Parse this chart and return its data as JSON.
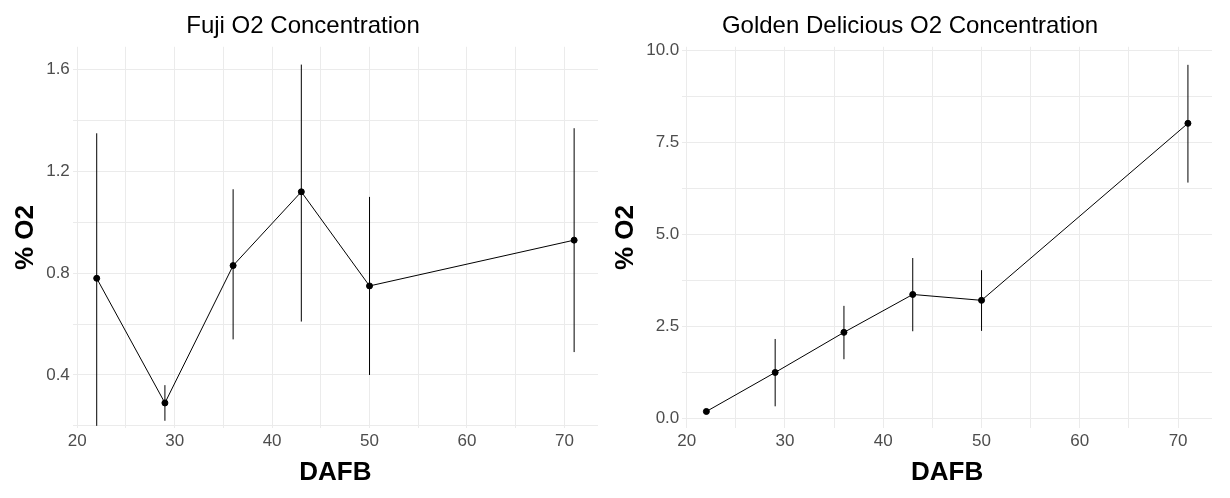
{
  "chart_data": [
    {
      "type": "line",
      "title": "Fuji O2 Concentration",
      "xlabel": "DAFB",
      "ylabel": "% O2",
      "x": [
        22,
        29,
        36,
        43,
        50,
        71
      ],
      "series": [
        {
          "color": "#000000",
          "values": [
            0.78,
            0.29,
            0.83,
            1.12,
            0.75,
            0.93
          ],
          "errors": [
            [
              0.2,
              1.35
            ],
            [
              0.22,
              0.36
            ],
            [
              0.54,
              1.13
            ],
            [
              0.61,
              1.62
            ],
            [
              0.4,
              1.1
            ],
            [
              0.49,
              1.37
            ]
          ]
        }
      ],
      "xlim": [
        19.55,
        73.45
      ],
      "xticks": [
        20,
        {
          "value": 25,
          "label": null
        },
        30,
        {
          "value": 35,
          "label": null
        },
        40,
        {
          "value": 45,
          "label": null
        },
        50,
        {
          "value": 55,
          "label": null
        },
        60,
        {
          "value": 65,
          "label": null
        },
        70
      ],
      "ylim": [
        0.19,
        1.69
      ],
      "yticks": [
        {
          "value": 0.2,
          "label": null
        },
        0.4,
        {
          "value": 0.6,
          "label": null
        },
        0.8,
        {
          "value": 1.0,
          "label": null
        },
        1.2,
        {
          "value": 1.4,
          "label": null
        },
        1.6
      ],
      "grid": true,
      "legend": false,
      "marker": "circle",
      "line_style": "solid"
    },
    {
      "type": "line",
      "title": "Golden Delicious O2 Concentration",
      "xlabel": "DAFB",
      "ylabel": "% O2",
      "x": [
        22,
        29,
        36,
        43,
        50,
        71
      ],
      "series": [
        {
          "color": "#000000",
          "values": [
            0.19,
            1.25,
            2.34,
            3.37,
            3.21,
            8.02
          ],
          "errors": [
            null,
            [
              0.33,
              2.16
            ],
            [
              1.61,
              3.06
            ],
            [
              2.37,
              4.36
            ],
            [
              2.38,
              4.03
            ],
            [
              6.41,
              9.61
            ]
          ]
        }
      ],
      "xlim": [
        19.55,
        73.45
      ],
      "xticks": [
        20,
        {
          "value": 25,
          "label": null
        },
        30,
        {
          "value": 35,
          "label": null
        },
        40,
        {
          "value": 45,
          "label": null
        },
        50,
        {
          "value": 55,
          "label": null
        },
        60,
        {
          "value": 65,
          "label": null
        },
        70
      ],
      "ylim": [
        -0.27,
        10.1
      ],
      "yticks": [
        {
          "value": 0,
          "label": "0.0"
        },
        {
          "value": 1.25,
          "label": null
        },
        2.5,
        {
          "value": 3.75,
          "label": null
        },
        {
          "value": 5,
          "label": "5.0"
        },
        {
          "value": 6.25,
          "label": null
        },
        7.5,
        {
          "value": 8.75,
          "label": null
        },
        {
          "value": 10,
          "label": "10.0"
        }
      ],
      "grid": true,
      "legend": false,
      "marker": "circle",
      "line_style": "solid"
    }
  ]
}
